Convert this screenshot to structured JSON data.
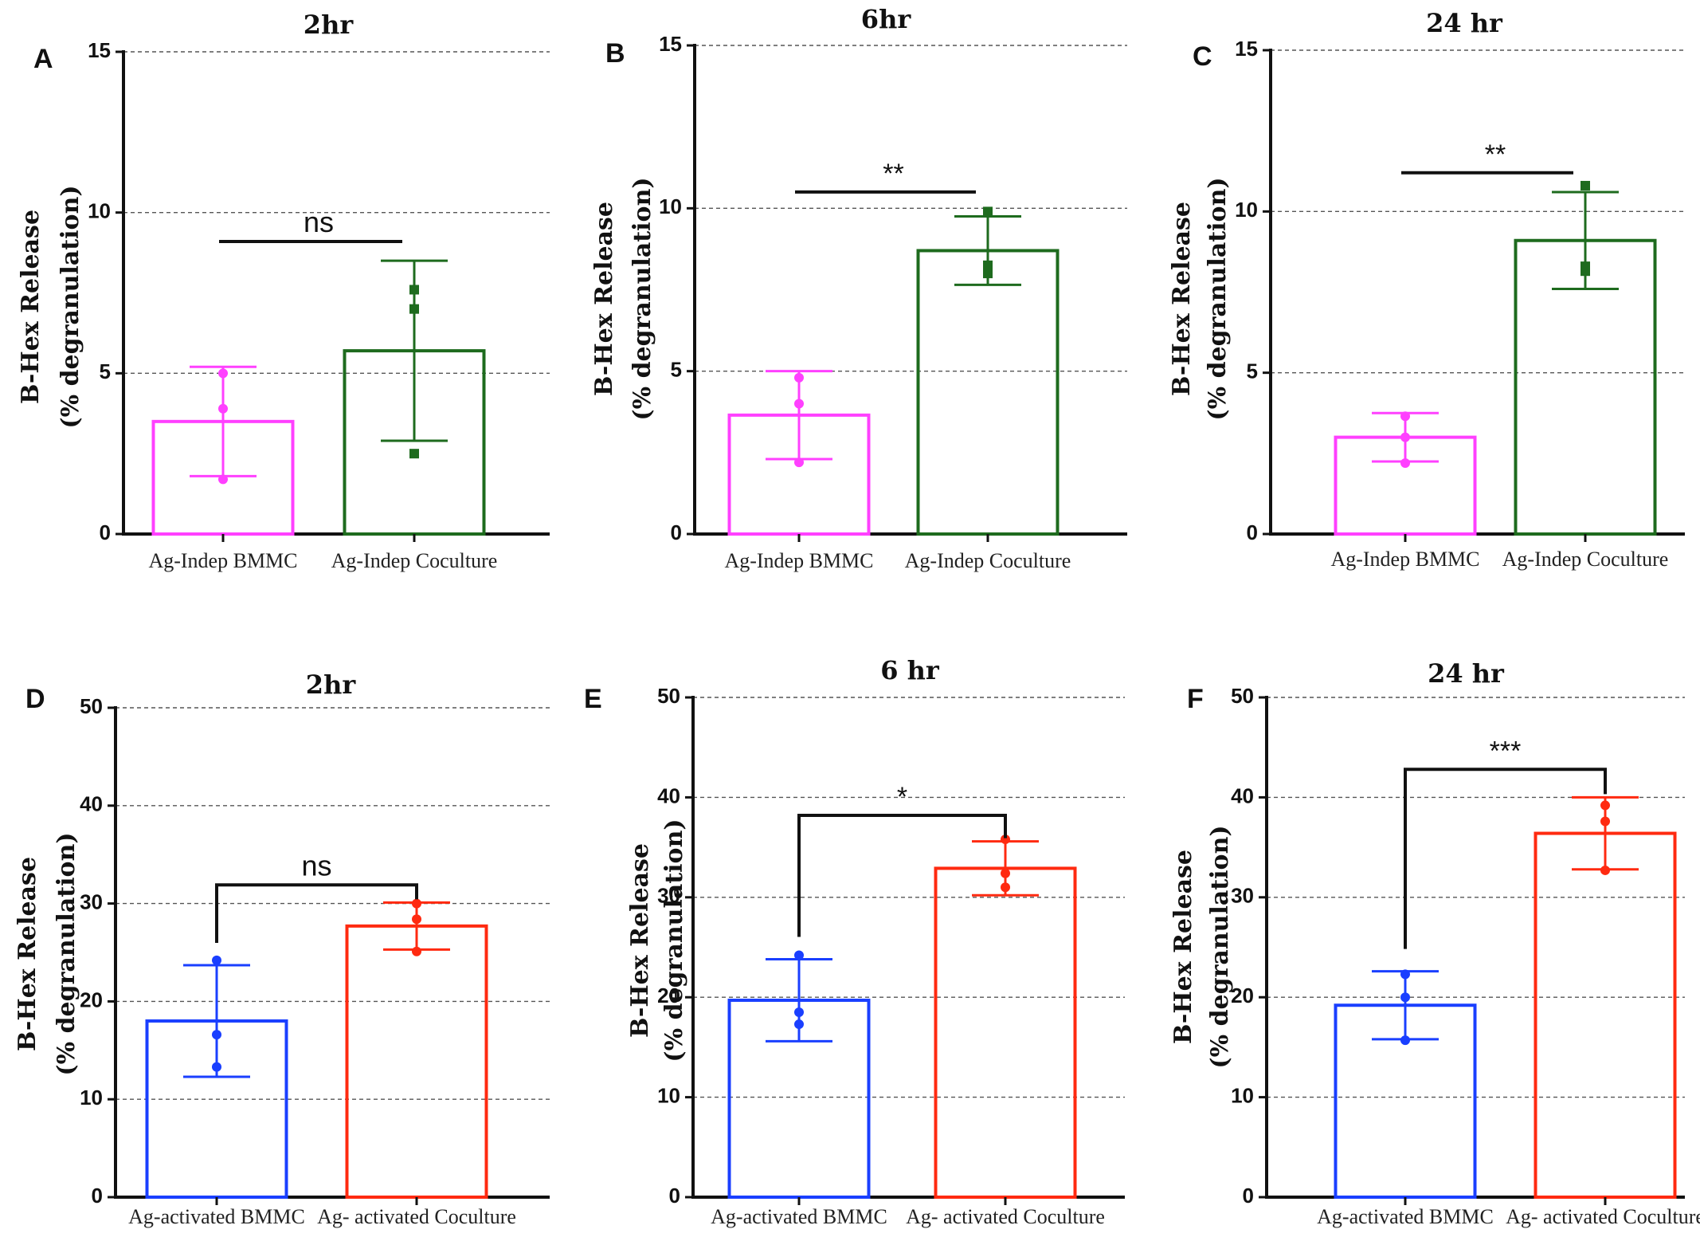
{
  "figure": {
    "panels": [
      "A",
      "B",
      "C",
      "D",
      "E",
      "F"
    ]
  },
  "chart_data": [
    {
      "panel": "A",
      "type": "bar",
      "title": "2hr",
      "ylabel_line1": "B-Hex Release",
      "ylabel_line2": "(% degranulation)",
      "ylim": [
        0,
        15
      ],
      "yticks": [
        0,
        5,
        10,
        15
      ],
      "categories": [
        "Ag-Indep BMMC",
        "Ag-Indep Coculture"
      ],
      "values": [
        3.5,
        5.7
      ],
      "errors": [
        1.7,
        2.8
      ],
      "points": [
        [
          5.0,
          3.9,
          1.7
        ],
        [
          7.6,
          7.0,
          2.5
        ]
      ],
      "colors": [
        "#ff40ff",
        "#1e6b1e"
      ],
      "markers": [
        "circle",
        "square"
      ],
      "significance": {
        "label": "ns",
        "y": 9.1,
        "bracket": false
      }
    },
    {
      "panel": "B",
      "type": "bar",
      "title": "6hr",
      "ylabel_line1": "B-Hex Release",
      "ylabel_line2": "(% degranulation)",
      "ylim": [
        0,
        15
      ],
      "yticks": [
        0,
        5,
        10,
        15
      ],
      "categories": [
        "Ag-Indep BMMC",
        "Ag-Indep Coculture"
      ],
      "values": [
        3.65,
        8.7
      ],
      "errors": [
        1.35,
        1.05
      ],
      "points": [
        [
          4.8,
          4.0,
          2.2
        ],
        [
          9.9,
          8.25,
          8.0
        ]
      ],
      "colors": [
        "#ff40ff",
        "#1e6b1e"
      ],
      "markers": [
        "circle",
        "square"
      ],
      "significance": {
        "label": "**",
        "y": 10.5,
        "bracket": false
      }
    },
    {
      "panel": "C",
      "type": "bar",
      "title": "24 hr",
      "ylabel_line1": "B-Hex Release",
      "ylabel_line2": "(% degranulation)",
      "ylim": [
        0,
        15
      ],
      "yticks": [
        0,
        5,
        10,
        15
      ],
      "categories": [
        "Ag-Indep BMMC",
        "Ag-Indep Coculture"
      ],
      "values": [
        3.0,
        9.1
      ],
      "errors": [
        0.75,
        1.5
      ],
      "points": [
        [
          3.65,
          3.0,
          2.2
        ],
        [
          10.8,
          8.3,
          8.15
        ]
      ],
      "colors": [
        "#ff40ff",
        "#1e6b1e"
      ],
      "markers": [
        "circle",
        "square"
      ],
      "significance": {
        "label": "**",
        "y": 11.2,
        "bracket": false
      }
    },
    {
      "panel": "D",
      "type": "bar",
      "title": "2hr",
      "ylabel_line1": "B-Hex Release",
      "ylabel_line2": "(% degranulation)",
      "ylim": [
        0,
        50
      ],
      "yticks": [
        0,
        10,
        20,
        30,
        40,
        50
      ],
      "categories": [
        "Ag-activated BMMC",
        "Ag- activated Coculture"
      ],
      "values": [
        18.0,
        27.7
      ],
      "errors": [
        5.7,
        2.4
      ],
      "points": [
        [
          24.2,
          16.6,
          13.3
        ],
        [
          30.0,
          28.4,
          25.1
        ]
      ],
      "colors": [
        "#1a3fff",
        "#ff2a10"
      ],
      "markers": [
        "circle",
        "circle"
      ],
      "significance": {
        "label": "ns",
        "y": 31.9,
        "bracket": true
      }
    },
    {
      "panel": "E",
      "type": "bar",
      "title": "6 hr",
      "ylabel_line1": "B-Hex Release",
      "ylabel_line2": "(% degranulation)",
      "ylim": [
        0,
        50
      ],
      "yticks": [
        0,
        10,
        20,
        30,
        40,
        50
      ],
      "categories": [
        "Ag-activated BMMC",
        "Ag- activated Coculture"
      ],
      "values": [
        19.7,
        32.9
      ],
      "errors": [
        4.1,
        2.7
      ],
      "points": [
        [
          24.2,
          18.5,
          17.3
        ],
        [
          35.8,
          32.4,
          31.0
        ]
      ],
      "colors": [
        "#1a3fff",
        "#ff2a10"
      ],
      "markers": [
        "circle",
        "circle"
      ],
      "significance": {
        "label": "*",
        "y": 38.2,
        "bracket": true
      }
    },
    {
      "panel": "F",
      "type": "bar",
      "title": "24 hr",
      "ylabel_line1": "B-Hex Release",
      "ylabel_line2": "(% degranulation)",
      "ylim": [
        0,
        50
      ],
      "yticks": [
        0,
        10,
        20,
        30,
        40,
        50
      ],
      "categories": [
        "Ag-activated BMMC",
        "Ag- activated Coculture"
      ],
      "values": [
        19.2,
        36.4
      ],
      "errors": [
        3.4,
        3.6
      ],
      "points": [
        [
          22.3,
          20.0,
          15.7
        ],
        [
          39.2,
          37.6,
          32.7
        ]
      ],
      "colors": [
        "#1a3fff",
        "#ff2a10"
      ],
      "markers": [
        "circle",
        "circle"
      ],
      "significance": {
        "label": "***",
        "y": 42.8,
        "bracket": true
      }
    }
  ]
}
